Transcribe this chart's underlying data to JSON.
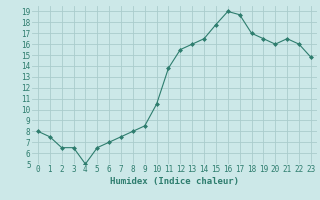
{
  "x": [
    0,
    1,
    2,
    3,
    4,
    5,
    6,
    7,
    8,
    9,
    10,
    11,
    12,
    13,
    14,
    15,
    16,
    17,
    18,
    19,
    20,
    21,
    22,
    23
  ],
  "y": [
    8.0,
    7.5,
    6.5,
    6.5,
    5.0,
    6.5,
    7.0,
    7.5,
    8.0,
    8.5,
    10.5,
    13.8,
    15.5,
    16.0,
    16.5,
    17.8,
    19.0,
    18.7,
    17.0,
    16.5,
    16.0,
    16.5,
    16.0,
    14.8
  ],
  "line_color": "#2e7d6e",
  "marker": "D",
  "marker_size": 2.0,
  "bg_color": "#cce8e8",
  "grid_color": "#aacccc",
  "xlabel": "Humidex (Indice chaleur)",
  "xlim": [
    -0.5,
    23.5
  ],
  "ylim": [
    5,
    19.5
  ],
  "yticks": [
    5,
    6,
    7,
    8,
    9,
    10,
    11,
    12,
    13,
    14,
    15,
    16,
    17,
    18,
    19
  ],
  "xticks": [
    0,
    1,
    2,
    3,
    4,
    5,
    6,
    7,
    8,
    9,
    10,
    11,
    12,
    13,
    14,
    15,
    16,
    17,
    18,
    19,
    20,
    21,
    22,
    23
  ],
  "tick_color": "#2e7d6e",
  "label_fontsize": 6.5,
  "tick_fontsize": 5.5
}
